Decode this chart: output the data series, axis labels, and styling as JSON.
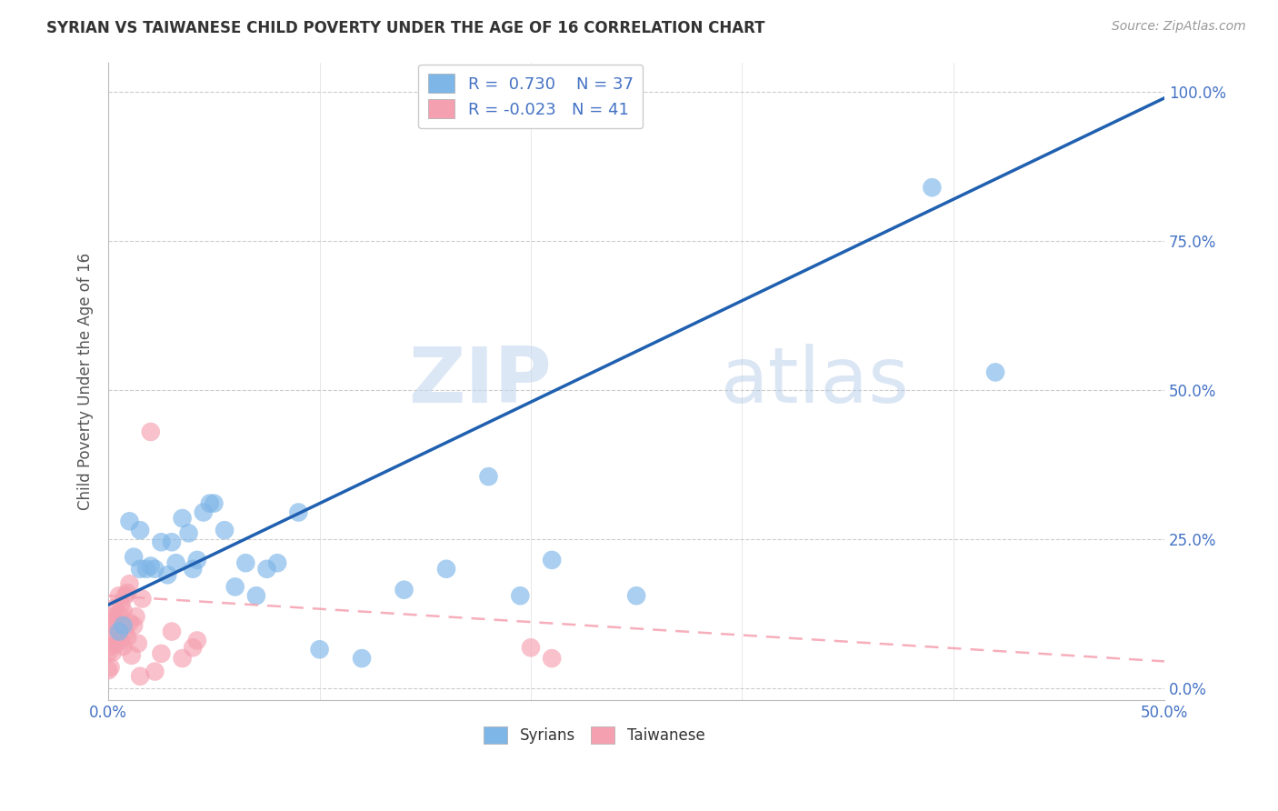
{
  "title": "SYRIAN VS TAIWANESE CHILD POVERTY UNDER THE AGE OF 16 CORRELATION CHART",
  "source": "Source: ZipAtlas.com",
  "ylabel": "Child Poverty Under the Age of 16",
  "xlim": [
    0.0,
    0.5
  ],
  "ylim": [
    -0.02,
    1.05
  ],
  "yticks": [
    0.0,
    0.25,
    0.5,
    0.75,
    1.0
  ],
  "ytick_labels": [
    "0.0%",
    "25.0%",
    "50.0%",
    "75.0%",
    "100.0%"
  ],
  "xticks": [
    0.0,
    0.1,
    0.2,
    0.3,
    0.4,
    0.5
  ],
  "xtick_labels": [
    "0.0%",
    "",
    "",
    "",
    "",
    "50.0%"
  ],
  "syrian_color": "#7EB6E8",
  "taiwanese_color": "#F5A0B0",
  "syrian_line_color": "#2060B0",
  "taiwanese_line_color": "#F5A0B0",
  "syrian_R": 0.73,
  "syrian_N": 37,
  "taiwanese_R": -0.023,
  "taiwanese_N": 41,
  "watermark_zip": "ZIP",
  "watermark_atlas": "atlas",
  "background_color": "#FFFFFF",
  "grid_color": "#CCCCCC",
  "title_color": "#333333",
  "axis_label_color": "#555555",
  "tick_color": "#4472C4",
  "legend_color": "#4472C4",
  "syrian_line_m": 1.7,
  "syrian_line_b": 0.14,
  "taiwanese_line_m": -0.22,
  "taiwanese_line_b": 0.155,
  "syrian_scatter_x": [
    0.005,
    0.007,
    0.01,
    0.012,
    0.015,
    0.015,
    0.018,
    0.02,
    0.022,
    0.025,
    0.028,
    0.03,
    0.032,
    0.035,
    0.038,
    0.04,
    0.042,
    0.045,
    0.048,
    0.05,
    0.055,
    0.06,
    0.065,
    0.07,
    0.075,
    0.08,
    0.09,
    0.1,
    0.12,
    0.14,
    0.16,
    0.18,
    0.195,
    0.21,
    0.25,
    0.39,
    0.42
  ],
  "syrian_scatter_y": [
    0.095,
    0.105,
    0.28,
    0.22,
    0.2,
    0.265,
    0.2,
    0.205,
    0.2,
    0.245,
    0.19,
    0.245,
    0.21,
    0.285,
    0.26,
    0.2,
    0.215,
    0.295,
    0.31,
    0.31,
    0.265,
    0.17,
    0.21,
    0.155,
    0.2,
    0.21,
    0.295,
    0.065,
    0.05,
    0.165,
    0.2,
    0.355,
    0.155,
    0.215,
    0.155,
    0.84,
    0.53
  ],
  "taiwanese_scatter_x": [
    0.0,
    0.0,
    0.001,
    0.001,
    0.001,
    0.002,
    0.002,
    0.002,
    0.003,
    0.003,
    0.003,
    0.004,
    0.004,
    0.005,
    0.005,
    0.005,
    0.006,
    0.006,
    0.007,
    0.007,
    0.008,
    0.008,
    0.009,
    0.009,
    0.01,
    0.01,
    0.011,
    0.012,
    0.013,
    0.014,
    0.015,
    0.016,
    0.02,
    0.022,
    0.025,
    0.03,
    0.035,
    0.04,
    0.042,
    0.2,
    0.21
  ],
  "taiwanese_scatter_y": [
    0.03,
    0.06,
    0.035,
    0.07,
    0.11,
    0.06,
    0.09,
    0.12,
    0.08,
    0.105,
    0.135,
    0.075,
    0.12,
    0.095,
    0.125,
    0.155,
    0.08,
    0.14,
    0.07,
    0.13,
    0.095,
    0.155,
    0.085,
    0.16,
    0.11,
    0.175,
    0.055,
    0.105,
    0.12,
    0.075,
    0.02,
    0.15,
    0.43,
    0.028,
    0.058,
    0.095,
    0.05,
    0.068,
    0.08,
    0.068,
    0.05
  ]
}
